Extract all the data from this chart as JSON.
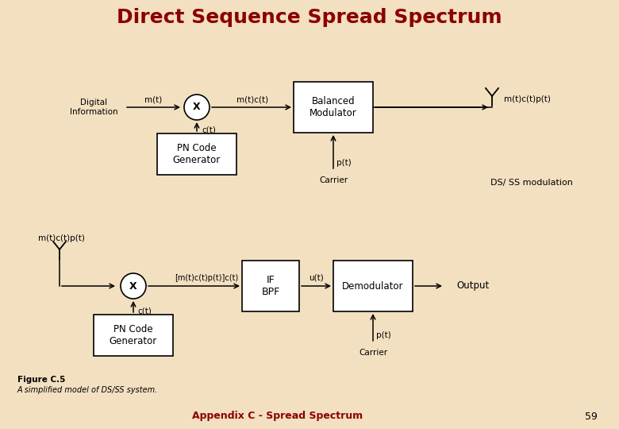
{
  "title": "Direct Sequence Spread Spectrum",
  "title_color": "#8B0000",
  "title_fontsize": 18,
  "bg_color": "#F2E0C0",
  "footer_text": "Appendix C - Spread Spectrum",
  "footer_color": "#8B0000",
  "page_number": "59",
  "figure_caption_bold": "Figure C.5",
  "figure_caption": "A simplified model of DS/SS system."
}
